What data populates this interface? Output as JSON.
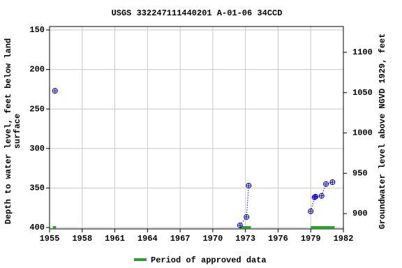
{
  "chart_data": {
    "type": "line",
    "title": "USGS 332247111440201 A-01-06 34CCD",
    "y_label": [
      "Depth to water level, feet below land",
      "surface"
    ],
    "y2_label": "Groundwater level above NGVD 1929, feet",
    "xlim": [
      1955,
      1982
    ],
    "xticks": [
      1955,
      1958,
      1961,
      1964,
      1967,
      1970,
      1973,
      1976,
      1979,
      1982
    ],
    "ylim": [
      401.8,
      145.6
    ],
    "yticks": [
      150,
      200,
      250,
      300,
      350,
      400
    ],
    "y2lim": [
      881,
      1132
    ],
    "y2ticks": [
      900,
      950,
      1000,
      1050,
      1100
    ],
    "grid": true,
    "series": [
      {
        "color": "#0000cc",
        "x": [
          1955.5,
          null,
          1972.5,
          1973.1,
          1973.3,
          null,
          1979.0,
          1979.35,
          1979.45,
          1980.0,
          1980.4,
          1981.0
        ],
        "values": [
          227,
          null,
          397.3,
          386.7,
          347,
          null,
          379.5,
          361.8,
          360.9,
          360,
          345,
          342.6
        ]
      }
    ],
    "approved_periods": {
      "name": "Period of approved data",
      "color": "#2ca02c",
      "ranges": [
        [
          1955.3,
          1955.6
        ],
        [
          1972.5,
          1973.5
        ],
        [
          1979.0,
          1981.2
        ]
      ]
    }
  }
}
